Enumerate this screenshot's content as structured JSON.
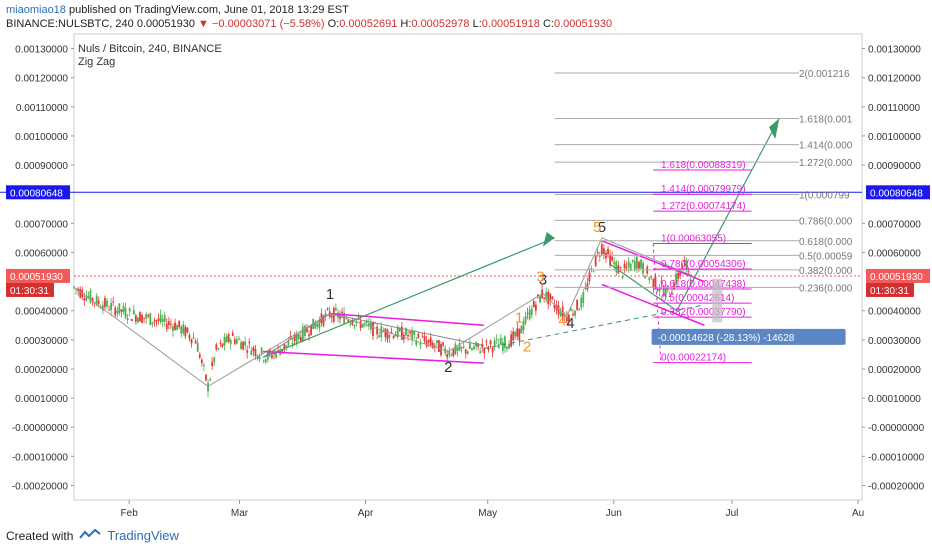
{
  "header": {
    "user": "miaomiao18",
    "published_text": "published on TradingView.com, June 01, 2018 13:29 EST",
    "symbol": "BINANCE:NULSBTC, 240",
    "last": "0.00051930",
    "change": "−0.00003071 (−5.58%)",
    "o_label": "O:",
    "o": "0.00052691",
    "h_label": "H:",
    "h": "0.00052978",
    "l_label": "L:",
    "l": "0.00051918",
    "c_label": "C:",
    "c": "0.00051930"
  },
  "legend": {
    "title": "Nuls / Bitcoin, 240, BINANCE",
    "indicator": "Zig Zag"
  },
  "footer": {
    "created_with": "Created with",
    "brand": "TradingView"
  },
  "colors": {
    "up": "#4caf50",
    "down": "#e53935",
    "fib_pink": "#e91ee0",
    "fib_gray": "#888888",
    "arrow_green": "#3c9a6a",
    "blue_line": "#1a1af0",
    "price_label": "#f15a5a",
    "time_label": "#d32f2f",
    "measure": "#5c86c4"
  },
  "chart_data": {
    "type": "line",
    "x_ticks": [
      "Feb",
      "Mar",
      "Apr",
      "May",
      "Jun",
      "Jul",
      "Au"
    ],
    "y_ticks": [
      "0.00130000",
      "0.00120000",
      "0.00110000",
      "0.00100000",
      "0.00090000",
      "0.00070000",
      "0.00060000",
      "0.00040000",
      "0.00030000",
      "0.00020000",
      "0.00010000",
      "-0.00000000",
      "-0.00010000",
      "-0.00020000"
    ],
    "ylim": [
      -0.00025,
      0.00135
    ],
    "price_labels": {
      "blue_level": "0.00080648",
      "current": "0.00051930",
      "countdown": "01:30:31"
    },
    "blue_level": 0.00080648,
    "current": 0.0005193,
    "price_series": [
      [
        0.0,
        0.00048
      ],
      [
        0.03,
        0.00043
      ],
      [
        0.07,
        0.00039
      ],
      [
        0.1,
        0.00037
      ],
      [
        0.13,
        0.00035
      ],
      [
        0.155,
        0.0003
      ],
      [
        0.165,
        0.00019
      ],
      [
        0.17,
        0.00014
      ],
      [
        0.18,
        0.00026
      ],
      [
        0.2,
        0.00031
      ],
      [
        0.22,
        0.00028
      ],
      [
        0.245,
        0.00024
      ],
      [
        0.27,
        0.00028
      ],
      [
        0.295,
        0.00033
      ],
      [
        0.325,
        0.00039
      ],
      [
        0.355,
        0.00037
      ],
      [
        0.385,
        0.00033
      ],
      [
        0.42,
        0.00032
      ],
      [
        0.45,
        0.00029
      ],
      [
        0.475,
        0.00026
      ],
      [
        0.51,
        0.00027
      ],
      [
        0.55,
        0.00029
      ],
      [
        0.565,
        0.00032
      ],
      [
        0.58,
        0.0004
      ],
      [
        0.595,
        0.00046
      ],
      [
        0.61,
        0.00042
      ],
      [
        0.625,
        0.00038
      ],
      [
        0.645,
        0.00043
      ],
      [
        0.66,
        0.00056
      ],
      [
        0.67,
        0.00062
      ],
      [
        0.68,
        0.00058
      ],
      [
        0.695,
        0.00053
      ],
      [
        0.715,
        0.00057
      ],
      [
        0.735,
        0.0005
      ],
      [
        0.755,
        0.00046
      ],
      [
        0.775,
        0.00056
      ],
      [
        0.785,
        0.00052
      ]
    ],
    "zigzag": [
      [
        0.0,
        0.00048
      ],
      [
        0.17,
        0.00014
      ],
      [
        0.325,
        0.00039
      ],
      [
        0.475,
        0.00026
      ],
      [
        0.595,
        0.00046
      ],
      [
        0.625,
        0.00038
      ],
      [
        0.67,
        0.00065
      ],
      [
        0.785,
        0.00052
      ]
    ],
    "wave_labels": [
      {
        "text": "1",
        "t": 0.325,
        "v": 0.00044,
        "color": "#333333"
      },
      {
        "text": "2",
        "t": 0.475,
        "v": 0.00019,
        "color": "#333333"
      },
      {
        "text": "3",
        "t": 0.595,
        "v": 0.00049,
        "color": "#333333"
      },
      {
        "text": "3",
        "t": 0.592,
        "v": 0.0005,
        "color": "#f0962a"
      },
      {
        "text": "4",
        "t": 0.63,
        "v": 0.00034,
        "color": "#333333"
      },
      {
        "text": "4",
        "t": 0.62,
        "v": 0.00035,
        "color": "#f0962a"
      },
      {
        "text": "1",
        "t": 0.565,
        "v": 0.00036,
        "color": "#f0962a"
      },
      {
        "text": "2",
        "t": 0.575,
        "v": 0.00026,
        "color": "#f0962a"
      },
      {
        "text": "5",
        "t": 0.67,
        "v": 0.00067,
        "color": "#333333"
      },
      {
        "text": "5",
        "t": 0.664,
        "v": 0.00067,
        "color": "#f0962a"
      }
    ],
    "fib_pink": [
      {
        "label": "1.618(0.00088319)",
        "v": 0.00088319
      },
      {
        "label": "1.414(0.00079979)",
        "v": 0.00079979
      },
      {
        "label": "1.272(0.00074174)",
        "v": 0.00074174
      },
      {
        "label": "1(0.00063055)",
        "v": 0.00063055
      },
      {
        "label": "0.786(0.00054306)",
        "v": 0.00054306
      },
      {
        "label": "0.618(0.00047438)",
        "v": 0.00047438
      },
      {
        "label": "0.5(0.00042614)",
        "v": 0.00042614
      },
      {
        "label": "0.382(0.00037790)",
        "v": 0.0003779
      },
      {
        "label": "0(0.00022174)",
        "v": 0.00022174
      }
    ],
    "fib_gray": [
      {
        "label": "2(0.001216",
        "v": 0.001216
      },
      {
        "label": "1.618(0.001",
        "v": 0.00106
      },
      {
        "label": "1.414(0.000",
        "v": 0.00097
      },
      {
        "label": "1.272(0.000",
        "v": 0.00091
      },
      {
        "label": "1(0.000799",
        "v": 0.000799
      },
      {
        "label": "0.786(0.000",
        "v": 0.00071
      },
      {
        "label": "0.618(0.000",
        "v": 0.00064
      },
      {
        "label": "0.5(0.00059",
        "v": 0.00059
      },
      {
        "label": "0.382(0.000",
        "v": 0.00054
      },
      {
        "label": "0.236(0.000",
        "v": 0.00048
      }
    ],
    "measure_label": "-0.00014628 (-28.13%) -14628"
  }
}
